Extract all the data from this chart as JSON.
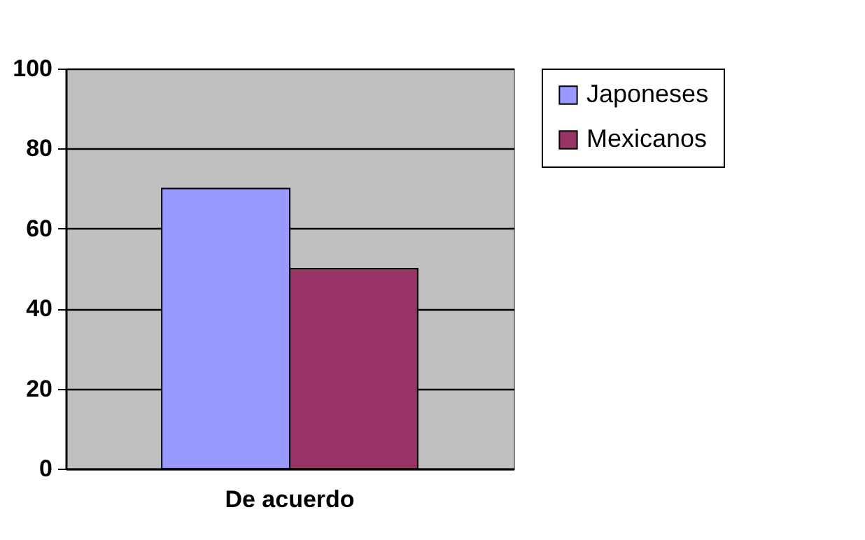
{
  "chart_data": {
    "type": "bar",
    "categories": [
      "De acuerdo"
    ],
    "series": [
      {
        "name": "Japoneses",
        "color": "#9999ff",
        "values": [
          70
        ]
      },
      {
        "name": "Mexicanos",
        "color": "#993366",
        "values": [
          50
        ]
      }
    ],
    "ylim": [
      0,
      100
    ],
    "yticks": [
      0,
      20,
      40,
      60,
      80,
      100
    ],
    "grid": "y",
    "legend": "right"
  }
}
